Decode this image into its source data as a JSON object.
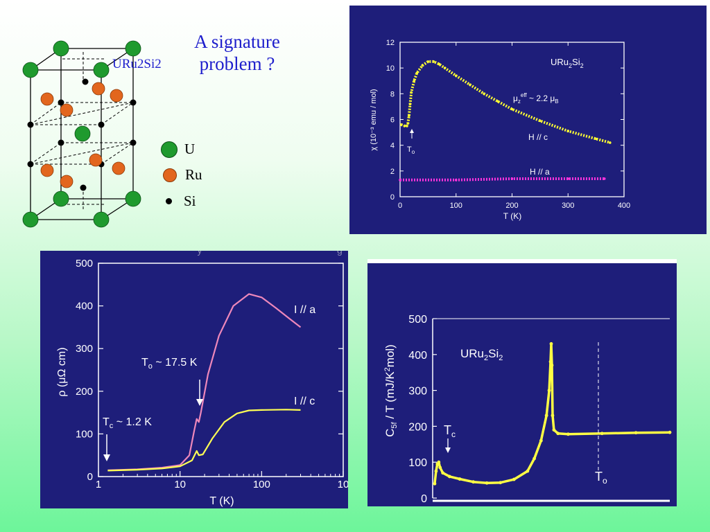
{
  "slide": {
    "title_line1": "A signature",
    "title_line2": "problem ?",
    "crystal_label": "URu2Si2",
    "legend": [
      {
        "symbol": "U",
        "label": "U",
        "color": "#1f9a2e"
      },
      {
        "symbol": "Ru",
        "label": "Ru",
        "color": "#e2661e"
      },
      {
        "symbol": "Si",
        "label": "Si",
        "color": "#000000"
      }
    ]
  },
  "chart_data": [
    {
      "type": "line",
      "compound": "URu2Si2",
      "xlabel": "T (K)",
      "ylabel": "χ (10⁻³ emu / mol)",
      "xlim": [
        0,
        400
      ],
      "ylim": [
        0,
        12
      ],
      "xticks": [
        "0",
        "100",
        "200",
        "300",
        "400"
      ],
      "yticks": [
        "0",
        "2",
        "4",
        "6",
        "8",
        "10",
        "12"
      ],
      "annotations": {
        "mu_eff": "μz^eff ~ 2.2 μB",
        "To_label": "To"
      },
      "series": [
        {
          "name": "H // c",
          "color": "#ffff33",
          "points": [
            [
              2,
              5.6
            ],
            [
              8,
              5.5
            ],
            [
              12,
              5.5
            ],
            [
              14,
              5.7
            ],
            [
              16,
              6.3
            ],
            [
              18,
              7.2
            ],
            [
              20,
              8.1
            ],
            [
              25,
              9.0
            ],
            [
              30,
              9.6
            ],
            [
              40,
              10.2
            ],
            [
              50,
              10.5
            ],
            [
              60,
              10.5
            ],
            [
              70,
              10.3
            ],
            [
              80,
              10.0
            ],
            [
              100,
              9.4
            ],
            [
              125,
              8.7
            ],
            [
              150,
              8.0
            ],
            [
              175,
              7.4
            ],
            [
              200,
              6.8
            ],
            [
              250,
              5.9
            ],
            [
              300,
              5.1
            ],
            [
              350,
              4.5
            ],
            [
              375,
              4.2
            ]
          ]
        },
        {
          "name": "H // a",
          "color": "#ff33dd",
          "points": [
            [
              0,
              1.3
            ],
            [
              100,
              1.3
            ],
            [
              200,
              1.4
            ],
            [
              300,
              1.4
            ],
            [
              365,
              1.4
            ]
          ]
        }
      ]
    },
    {
      "type": "line",
      "xlabel": "T (K)",
      "ylabel": "ρ (μΩ cm)",
      "xscale": "log",
      "xlim": [
        1,
        1000
      ],
      "ylim": [
        0,
        500
      ],
      "xticks": [
        "1",
        "10",
        "100",
        "10"
      ],
      "yticks": [
        "0",
        "100",
        "200",
        "300",
        "400",
        "500"
      ],
      "annotations": {
        "To_label": "To ~ 17.5 K",
        "Tc_label": "Tc ~ 1.2 K"
      },
      "series": [
        {
          "name": "I // a",
          "color": "#ee88bb",
          "points": [
            [
              1.3,
              15
            ],
            [
              3,
              17
            ],
            [
              6,
              21
            ],
            [
              10,
              27
            ],
            [
              13,
              50
            ],
            [
              15,
              110
            ],
            [
              16,
              135
            ],
            [
              17,
              128
            ],
            [
              18,
              150
            ],
            [
              22,
              240
            ],
            [
              30,
              330
            ],
            [
              45,
              400
            ],
            [
              70,
              428
            ],
            [
              100,
              420
            ],
            [
              150,
              395
            ],
            [
              220,
              370
            ],
            [
              300,
              350
            ]
          ]
        },
        {
          "name": "I // c",
          "color": "#ffff55",
          "points": [
            [
              1.3,
              14
            ],
            [
              3,
              16
            ],
            [
              6,
              19
            ],
            [
              10,
              24
            ],
            [
              14,
              38
            ],
            [
              16,
              60
            ],
            [
              17,
              50
            ],
            [
              19,
              52
            ],
            [
              25,
              90
            ],
            [
              35,
              128
            ],
            [
              50,
              148
            ],
            [
              70,
              155
            ],
            [
              100,
              156
            ],
            [
              200,
              157
            ],
            [
              300,
              156
            ]
          ]
        }
      ]
    },
    {
      "type": "scatter",
      "compound": "URu2Si2",
      "ylabel": "C5f / T (mJ/K²mol)",
      "ylim": [
        0,
        500
      ],
      "yticks": [
        "0",
        "100",
        "200",
        "300",
        "400",
        "500"
      ],
      "annotations": {
        "Tc_label": "Tc",
        "To_label": "To"
      },
      "series": [
        {
          "name": "C5f / T",
          "color": "#ffff44",
          "points": [
            [
              0.3,
              40
            ],
            [
              0.5,
              75
            ],
            [
              0.7,
              95
            ],
            [
              0.9,
              100
            ],
            [
              1.1,
              85
            ],
            [
              1.5,
              70
            ],
            [
              2.5,
              60
            ],
            [
              4,
              53
            ],
            [
              6,
              45
            ],
            [
              8,
              42
            ],
            [
              10,
              43
            ],
            [
              12,
              52
            ],
            [
              14,
              75
            ],
            [
              15,
              110
            ],
            [
              16,
              160
            ],
            [
              16.8,
              230
            ],
            [
              17.2,
              300
            ],
            [
              17.4,
              380
            ],
            [
              17.5,
              430
            ],
            [
              17.6,
              370
            ],
            [
              17.7,
              230
            ],
            [
              17.9,
              190
            ],
            [
              18.5,
              180
            ],
            [
              20,
              178
            ],
            [
              25,
              180
            ],
            [
              30,
              182
            ],
            [
              35,
              183
            ]
          ]
        }
      ]
    }
  ]
}
